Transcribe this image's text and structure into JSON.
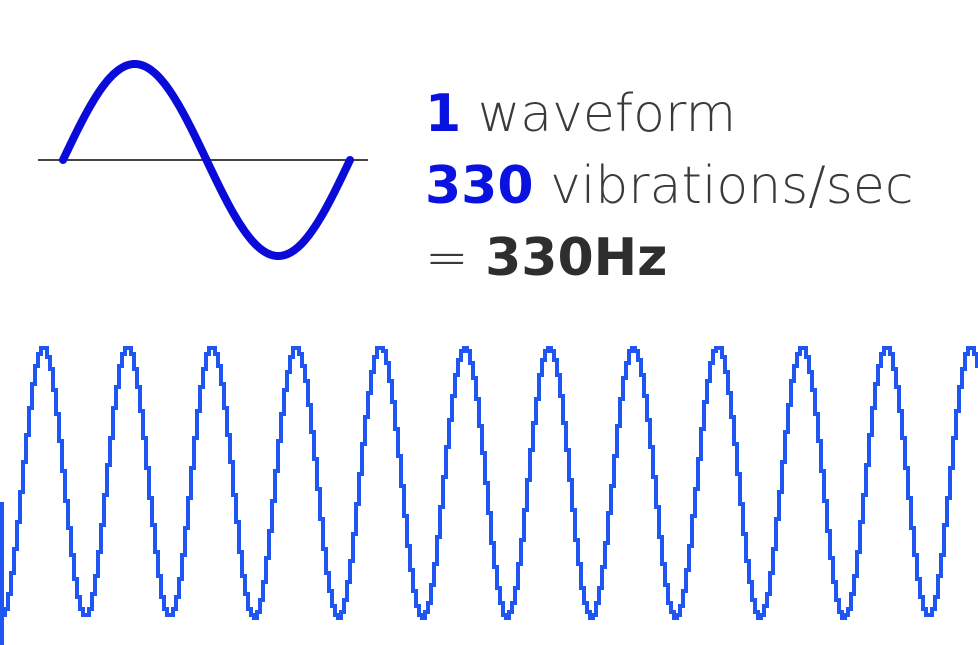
{
  "colors": {
    "accent": "#0a12e0",
    "wave_dark": "#0b0bd9",
    "wave_light": "#1f55f2",
    "axis": "#444444",
    "text": "#3a3a3a"
  },
  "caption": {
    "line1": {
      "num": "1",
      "text": "waveform"
    },
    "line2": {
      "num": "330",
      "text": "vibrations/sec"
    },
    "line3": {
      "prefix": "=",
      "result": "330Hz"
    }
  },
  "single_wave": {
    "cycles": 1
  },
  "repeated_wave": {
    "visible_cycles": 11.6
  }
}
